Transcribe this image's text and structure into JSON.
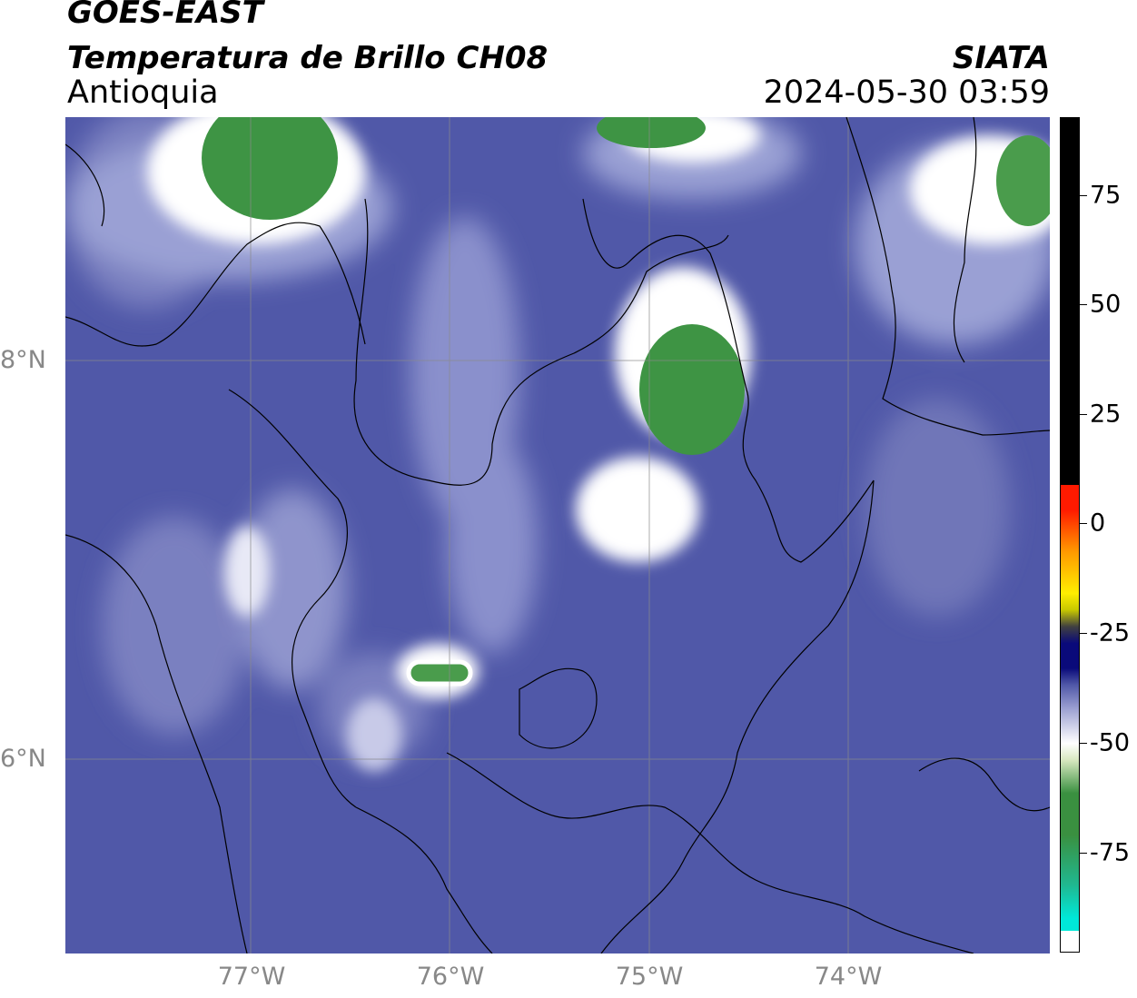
{
  "header": {
    "satellite": "GOES-EAST",
    "product": "Temperatura de Brillo CH08",
    "region": "Antioquia",
    "organization": "SIATA",
    "datetime": "2024-05-30 03:59"
  },
  "map": {
    "lat_labels": [
      "8°N",
      "6°N"
    ],
    "lon_labels": [
      "77°W",
      "76°W",
      "75°W",
      "74°W"
    ],
    "background_color": "#5058a8"
  },
  "colorbar": {
    "tick_labels": [
      "75",
      "50",
      "25",
      "0",
      "-25",
      "-50",
      "-75"
    ],
    "colors": {
      "black": "#000000",
      "red": "#ff1a00",
      "orange": "#ff9900",
      "yellow": "#ffee00",
      "navy": "#0a0a7a",
      "blue_gray": "#5058a8",
      "white": "#ffffff",
      "green": "#3a9040",
      "cyan": "#00e8d8"
    }
  }
}
